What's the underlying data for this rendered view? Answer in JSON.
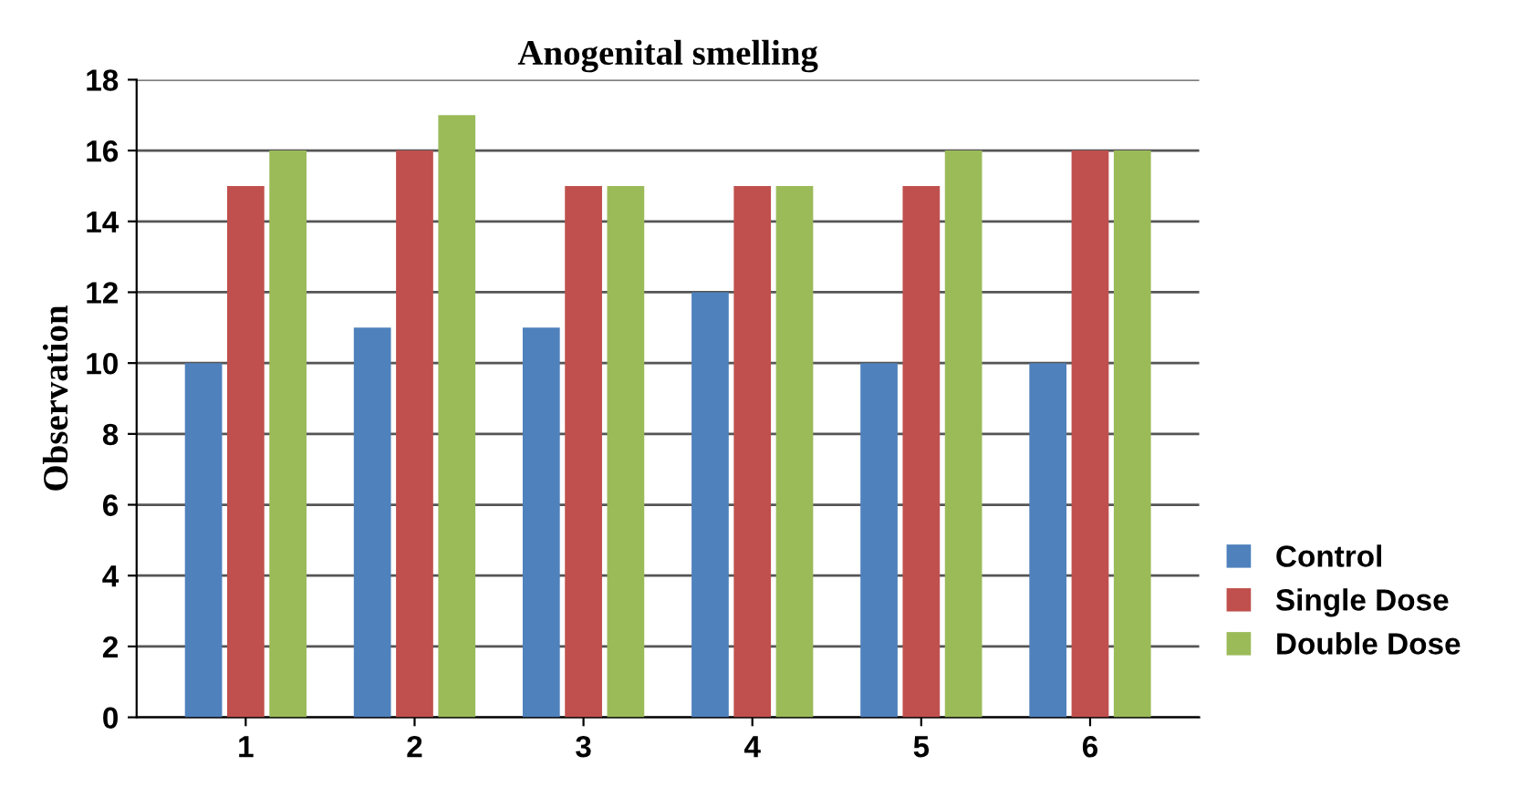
{
  "chart_data": {
    "type": "bar",
    "title": "Anogenital smelling",
    "ylabel": "Observation",
    "categories": [
      "1",
      "2",
      "3",
      "4",
      "5",
      "6"
    ],
    "series": [
      {
        "name": "Control",
        "color": "#4f81bd",
        "values": [
          10,
          11,
          11,
          12,
          10,
          10
        ]
      },
      {
        "name": "Single Dose",
        "color": "#c0504d",
        "values": [
          15,
          16,
          15,
          15,
          15,
          16
        ]
      },
      {
        "name": "Double Dose",
        "color": "#9bbb59",
        "values": [
          16,
          17,
          15,
          15,
          16,
          16
        ]
      }
    ],
    "ylim": [
      0,
      18
    ],
    "yticks": [
      0,
      2,
      4,
      6,
      8,
      10,
      12,
      14,
      16,
      18
    ],
    "grid": "y",
    "legend": "right"
  }
}
